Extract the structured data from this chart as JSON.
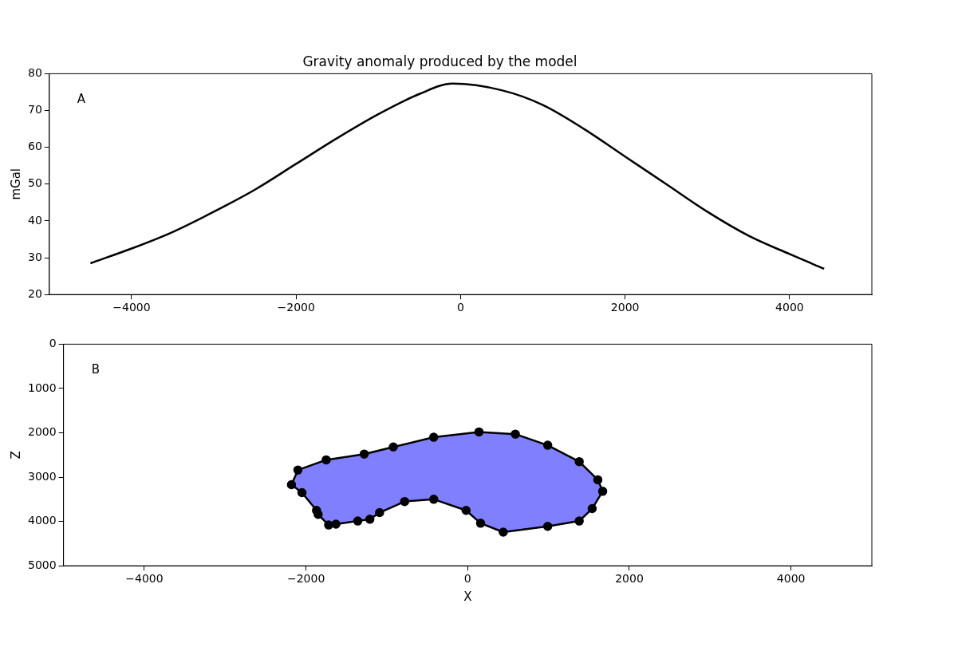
{
  "chart_data": [
    {
      "type": "line",
      "title": "Gravity anomaly produced by the model",
      "ylabel": "mGal",
      "annotations": [
        "A"
      ],
      "xlim": [
        -5000,
        5000
      ],
      "xticks": [
        -4000,
        -2000,
        0,
        2000,
        4000
      ],
      "ylim": [
        20,
        80
      ],
      "yticks": [
        20,
        30,
        40,
        50,
        60,
        70,
        80
      ],
      "grid": false,
      "legend": false,
      "series": [
        {
          "color": "#000000",
          "x": [
            -4500,
            -4000,
            -3500,
            -3000,
            -2500,
            -2000,
            -1500,
            -1000,
            -500,
            -100,
            500,
            1000,
            1500,
            2000,
            2500,
            3000,
            3500,
            4000,
            4420
          ],
          "values": [
            28.5,
            32.5,
            37,
            42.5,
            48.5,
            55.5,
            62.5,
            69,
            74.5,
            77.3,
            75.5,
            71.5,
            65,
            57.5,
            50,
            42.5,
            36,
            31,
            27
          ]
        }
      ]
    },
    {
      "type": "area",
      "xlabel": "X",
      "ylabel": "Z",
      "annotations": [
        "B"
      ],
      "xlim": [
        -5000,
        5000
      ],
      "xticks": [
        -4000,
        -2000,
        0,
        2000,
        4000
      ],
      "ylim": [
        5000,
        0
      ],
      "yticks": [
        0,
        1000,
        2000,
        3000,
        4000,
        5000
      ],
      "grid": false,
      "legend": false,
      "marker": "circle",
      "series": [
        {
          "color": "#8080ff",
          "x": [
            -2100,
            -1750,
            -1280,
            -920,
            -420,
            140,
            590,
            990,
            1380,
            1610,
            1670,
            1540,
            1380,
            990,
            440,
            160,
            -20,
            -420,
            -780,
            -1090,
            -1210,
            -1360,
            -1630,
            -1720,
            -1850,
            -1870,
            -2050,
            -2180
          ],
          "values": [
            2840,
            2610,
            2480,
            2320,
            2100,
            1980,
            2030,
            2280,
            2650,
            3060,
            3320,
            3710,
            3990,
            4110,
            4240,
            4040,
            3750,
            3500,
            3550,
            3800,
            3950,
            3990,
            4060,
            4080,
            3840,
            3750,
            3350,
            3170
          ]
        }
      ]
    }
  ]
}
